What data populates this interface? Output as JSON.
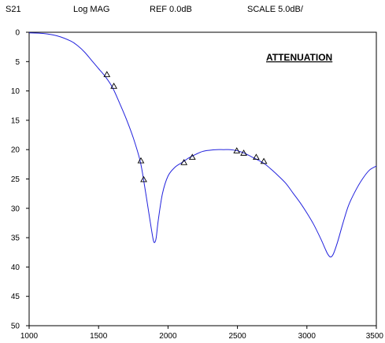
{
  "header": {
    "param": "S21",
    "format": "Log MAG",
    "ref": "REF  0.0dB",
    "scale": "SCALE  5.0dB/"
  },
  "chart_data": {
    "type": "line",
    "title": "",
    "xlabel": "",
    "ylabel": "",
    "xlim": [
      1000,
      3500
    ],
    "ylim": [
      0,
      50
    ],
    "y_inverted": true,
    "grid": false,
    "annotation": "ATTENUATION",
    "line_color": "#2222dd",
    "marker_color": "#000000",
    "xticks": [
      "1000",
      "1500",
      "2000",
      "2500",
      "3000",
      "3500"
    ],
    "yticks": [
      "0",
      "5",
      "10",
      "15",
      "20",
      "25",
      "30",
      "35",
      "40",
      "45",
      "50"
    ],
    "series": [
      {
        "x": [
          1000,
          1100,
          1200,
          1300,
          1350,
          1400,
          1450,
          1500,
          1550,
          1600,
          1650,
          1700,
          1750,
          1800,
          1830,
          1860,
          1880,
          1895,
          1905,
          1915,
          1930,
          1960,
          2000,
          2050,
          2100,
          2150,
          2200,
          2250,
          2300,
          2350,
          2400,
          2450,
          2500,
          2550,
          2600,
          2650,
          2700,
          2750,
          2800,
          2850,
          2900,
          2950,
          3000,
          3050,
          3100,
          3130,
          3150,
          3170,
          3190,
          3220,
          3260,
          3300,
          3350,
          3400,
          3450,
          3500
        ],
        "y": [
          0.1,
          0.2,
          0.6,
          1.5,
          2.3,
          3.4,
          4.8,
          6.2,
          7.6,
          9.4,
          12.0,
          14.8,
          18.0,
          22.0,
          26.0,
          30.5,
          33.5,
          35.5,
          35.8,
          35.0,
          32.0,
          27.5,
          24.5,
          23.0,
          22.2,
          21.4,
          20.8,
          20.3,
          20.1,
          20.0,
          20.0,
          20.0,
          20.2,
          20.6,
          21.2,
          21.8,
          22.5,
          23.5,
          24.6,
          25.8,
          27.4,
          29.0,
          30.8,
          32.8,
          35.2,
          36.8,
          37.8,
          38.3,
          37.8,
          35.8,
          32.5,
          29.5,
          27.0,
          25.0,
          23.5,
          22.8
        ]
      }
    ],
    "markers": {
      "x": [
        1560,
        1610,
        1805,
        1825,
        2115,
        2175,
        2495,
        2545,
        2635,
        2690
      ],
      "y": [
        7.2,
        9.2,
        21.9,
        25.1,
        22.2,
        21.3,
        20.2,
        20.6,
        21.3,
        22.0
      ]
    }
  }
}
